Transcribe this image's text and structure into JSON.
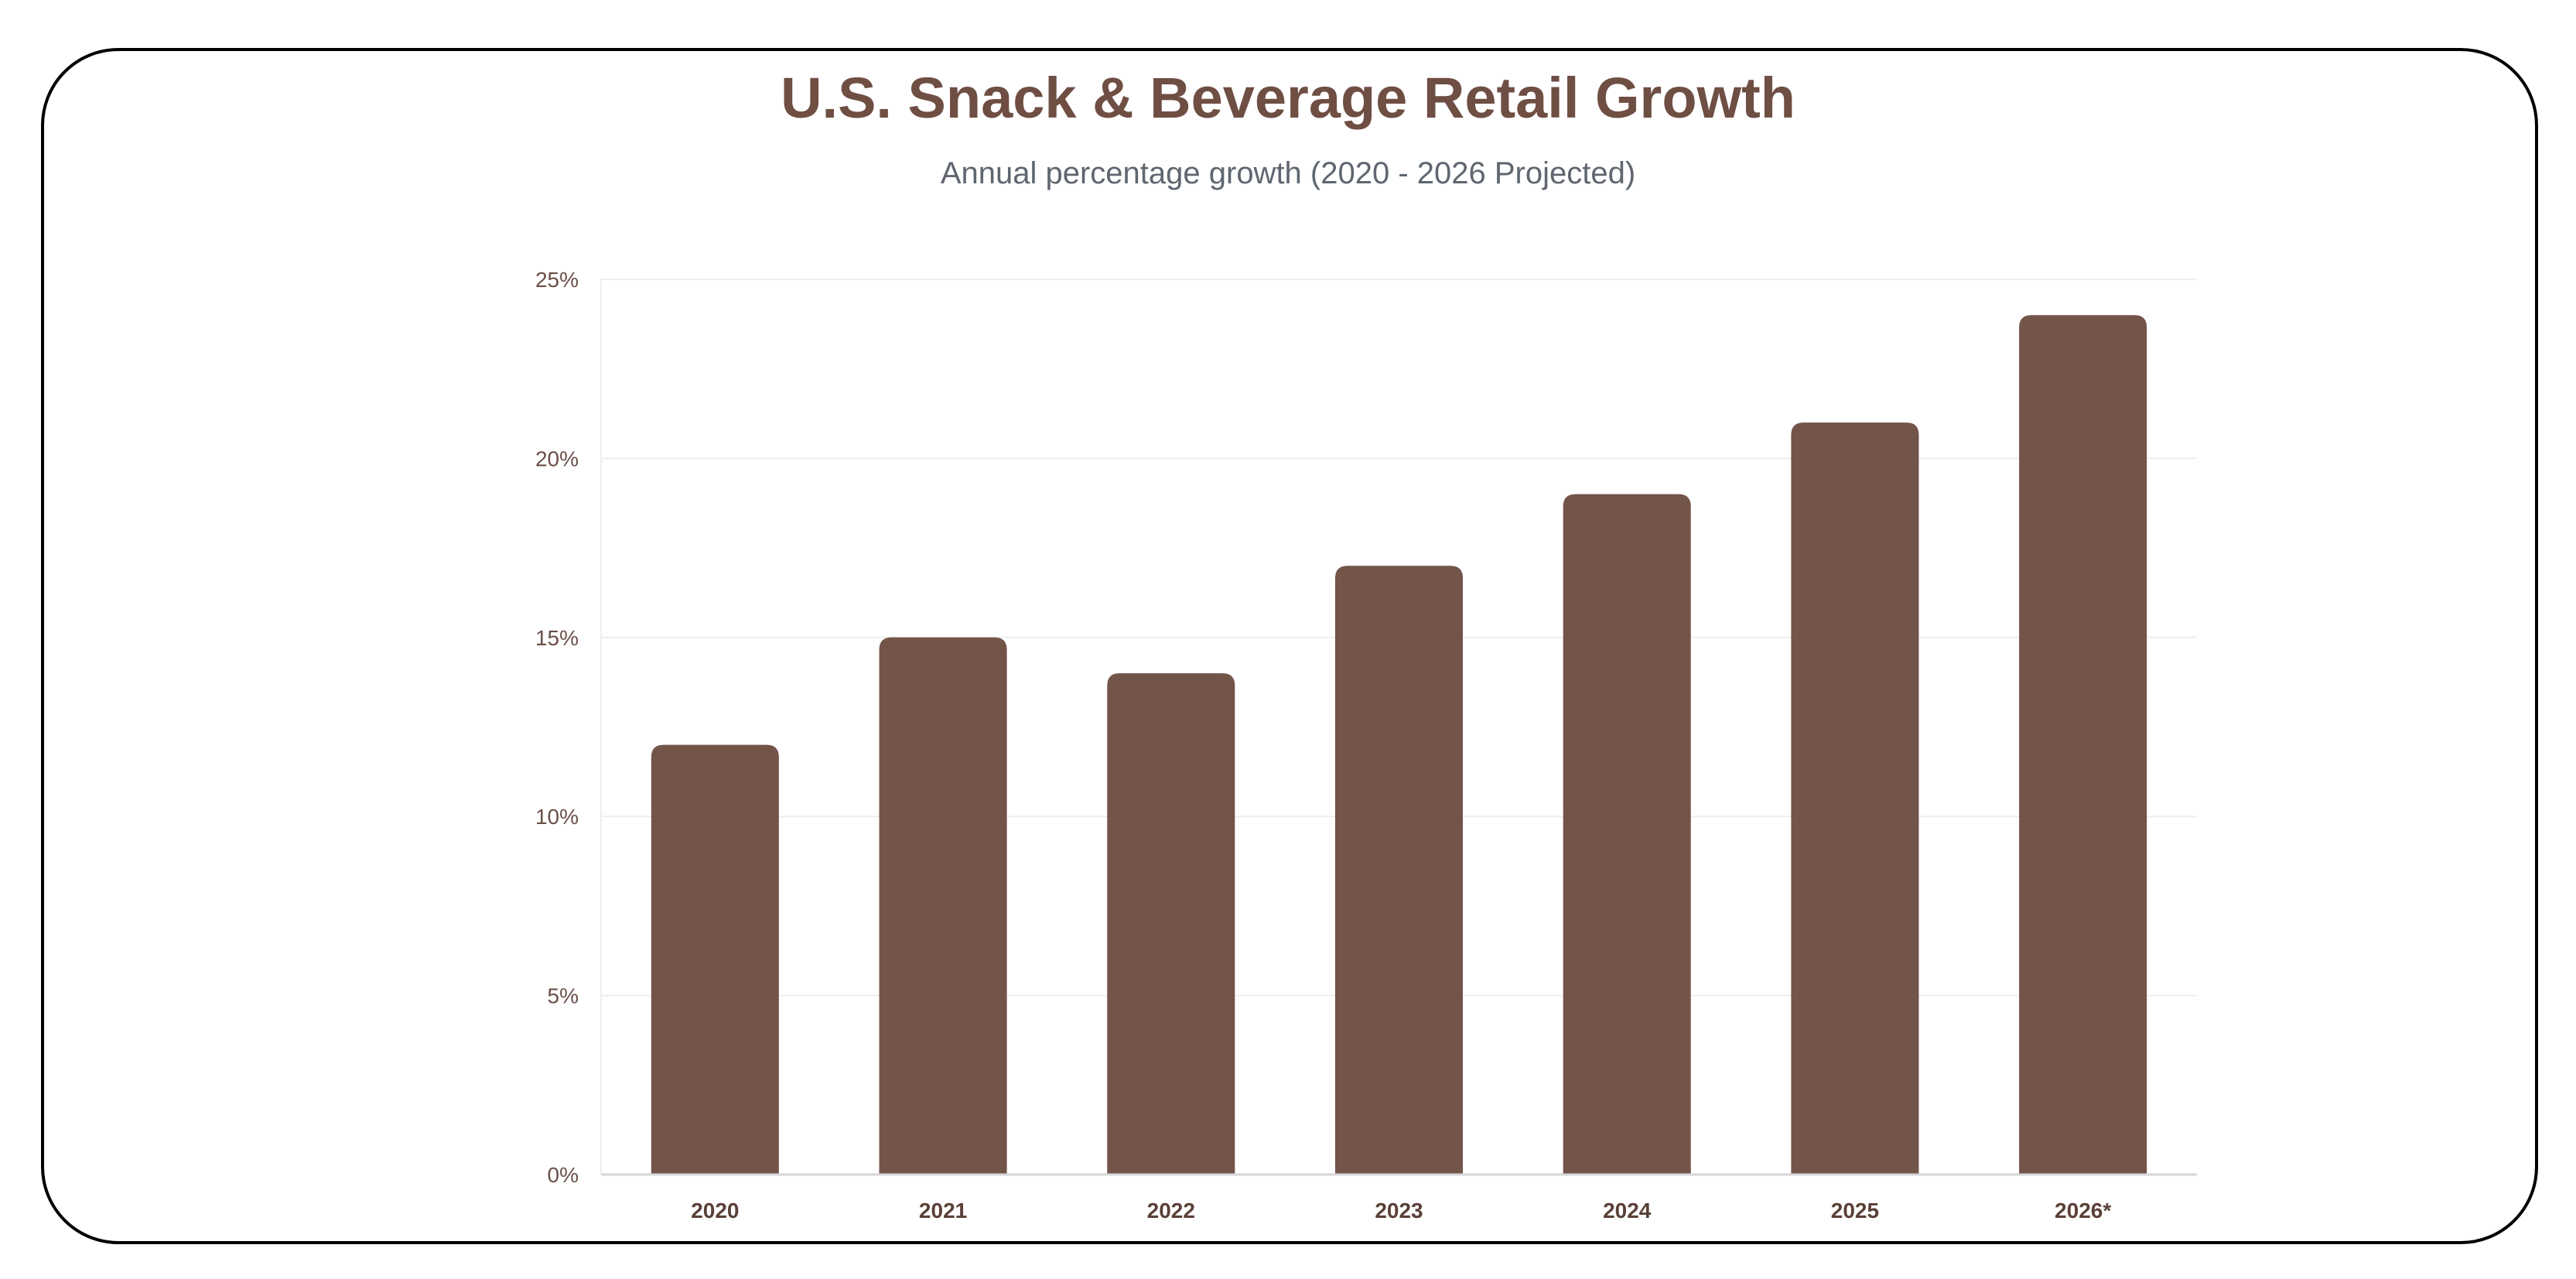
{
  "colors": {
    "bar": "#735449",
    "title": "#6f4e43",
    "subtitle": "#5f6670",
    "grid": "#eeeeee"
  },
  "chart_data": {
    "type": "bar",
    "title": "U.S. Snack & Beverage Retail Growth",
    "subtitle": "Annual percentage growth (2020 - 2026 Projected)",
    "xlabel": "",
    "ylabel": "",
    "categories": [
      "2020",
      "2021",
      "2022",
      "2023",
      "2024",
      "2025",
      "2026*"
    ],
    "values": [
      12,
      15,
      14,
      17,
      19,
      21,
      24
    ],
    "ylim": [
      0,
      25
    ],
    "yticks": [
      0,
      5,
      10,
      15,
      20,
      25
    ],
    "ytick_labels": [
      "0%",
      "5%",
      "10%",
      "15%",
      "20%",
      "25%"
    ],
    "grid": true,
    "legend": "none"
  }
}
